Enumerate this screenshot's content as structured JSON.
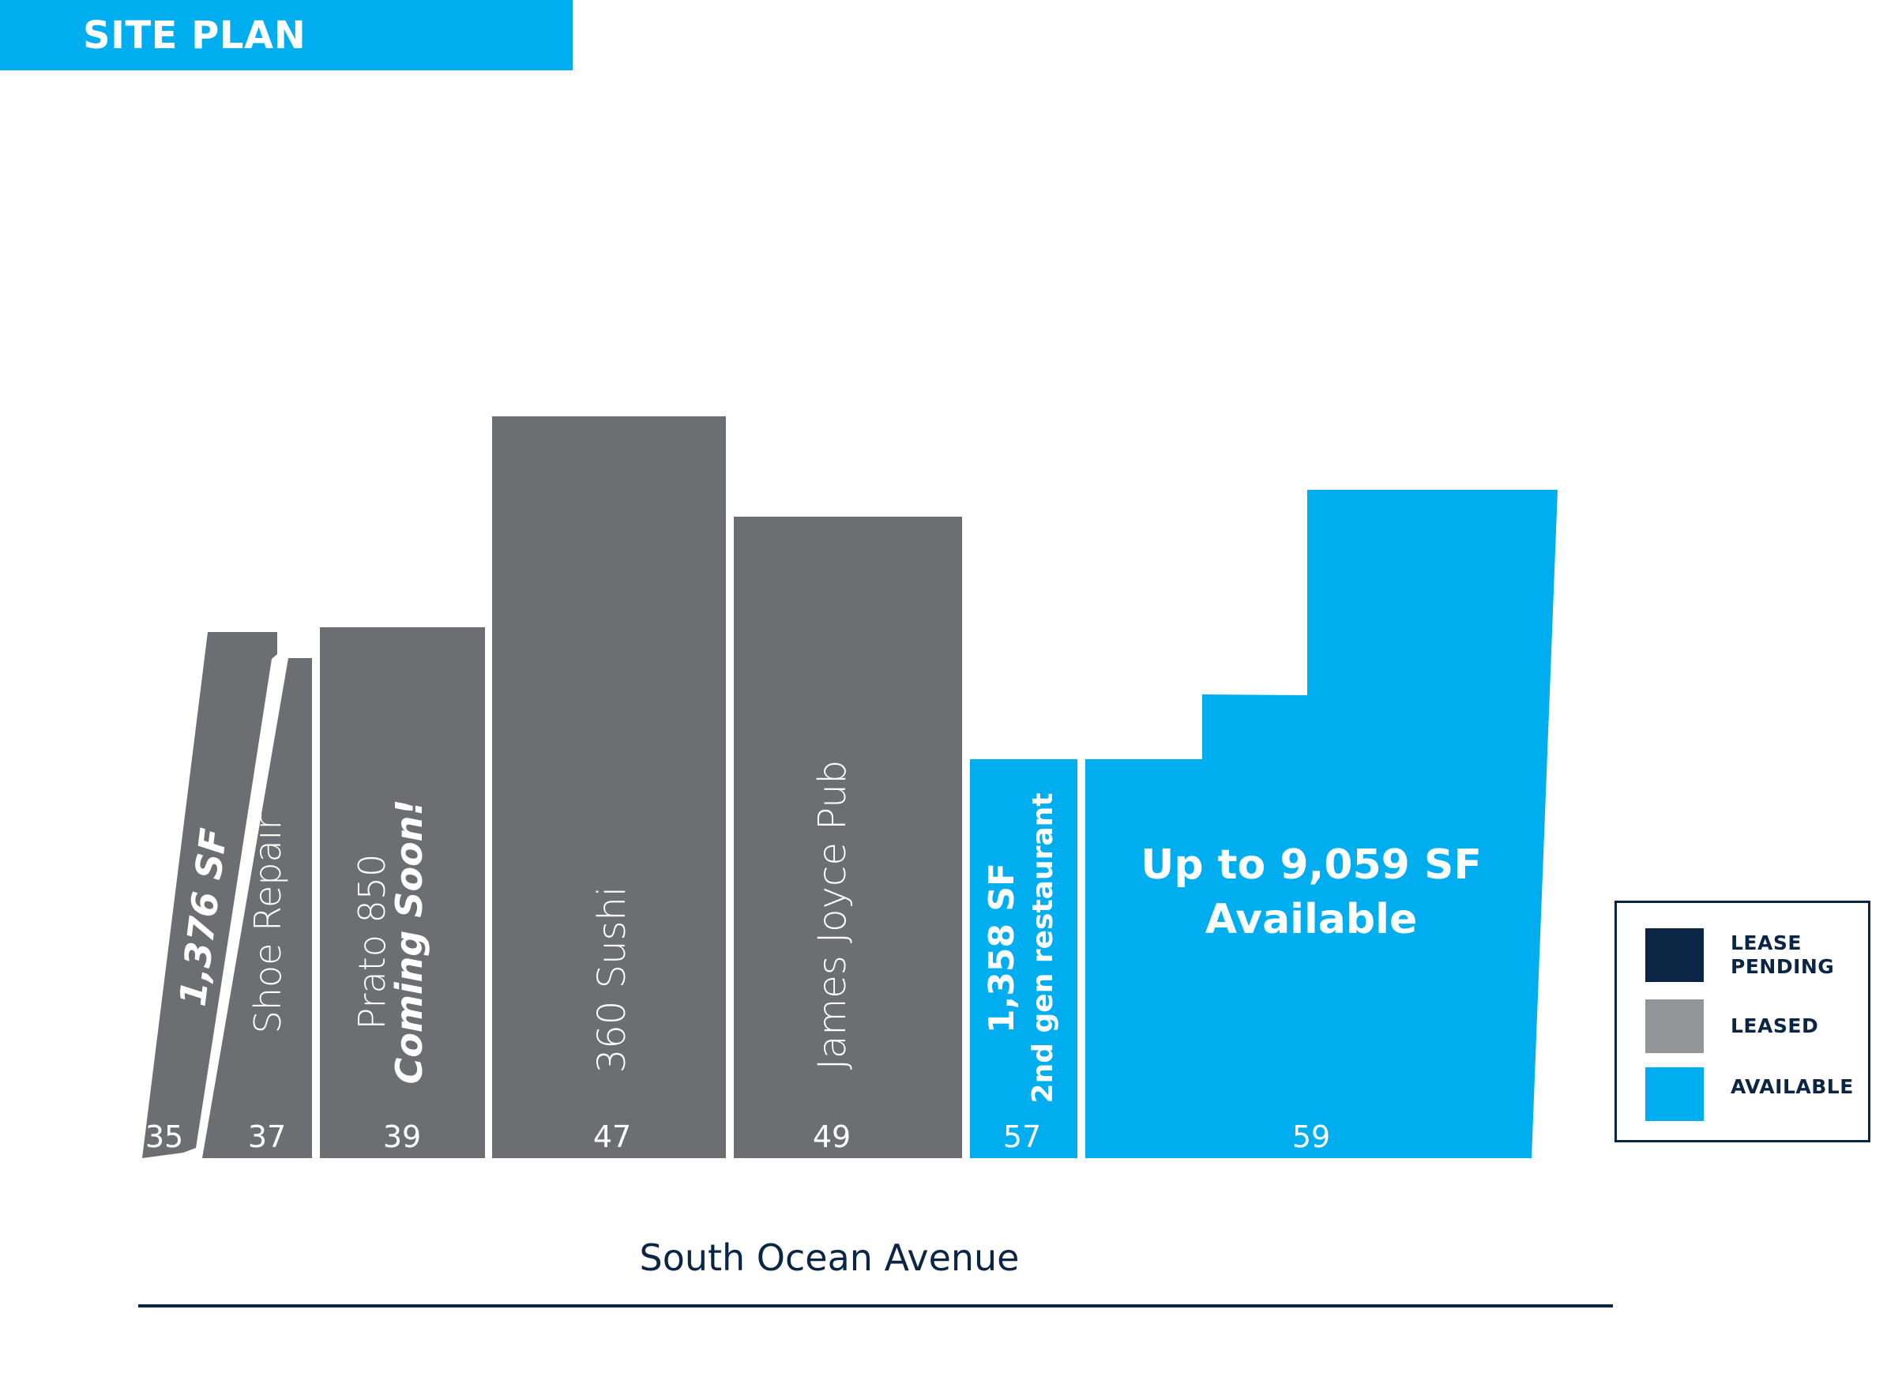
{
  "header": {
    "title": "SITE PLAN"
  },
  "colors": {
    "available": "#00aeef",
    "leased": "#6d6e71",
    "lease_pending": "#0b2545",
    "leased_swatch": "#939598",
    "text_dark": "#0b2545"
  },
  "units": [
    {
      "number": "35",
      "label": "1,376 SF",
      "status": "leased"
    },
    {
      "number": "37",
      "label": "Shoe Repair",
      "status": "leased"
    },
    {
      "number": "39",
      "label_line1": "Prato 850",
      "label_line2": "Coming Soon!",
      "status": "leased"
    },
    {
      "number": "47",
      "label": "360 Sushi",
      "status": "leased"
    },
    {
      "number": "49",
      "label": "James Joyce Pub",
      "status": "leased"
    },
    {
      "number": "57",
      "label_line1": "1,358 SF",
      "label_line2": "2nd gen restaurant",
      "status": "available"
    },
    {
      "number": "59",
      "label_line1": "Up to 9,059 SF",
      "label_line2": "Available",
      "status": "available"
    }
  ],
  "street": {
    "name": "South Ocean Avenue"
  },
  "legend": {
    "items": [
      {
        "line1": "LEASE",
        "line2": "PENDING",
        "color": "#0b2545"
      },
      {
        "line1": "LEASED",
        "line2": "",
        "color": "#939598"
      },
      {
        "line1": "AVAILABLE",
        "line2": "",
        "color": "#00aeef"
      }
    ]
  }
}
